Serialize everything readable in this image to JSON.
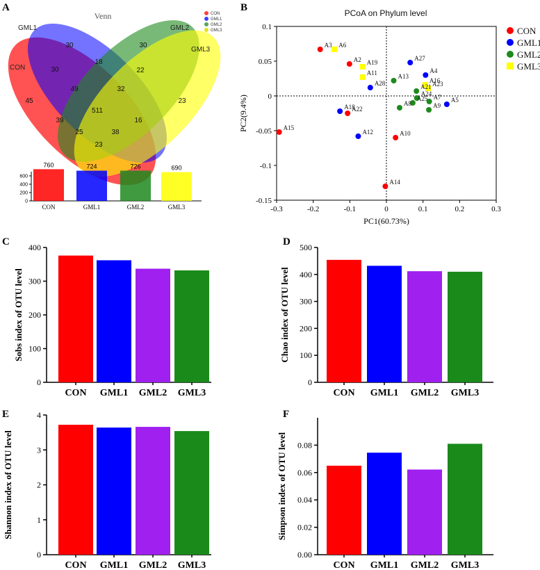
{
  "colors": {
    "CON": "#ff0000",
    "GML1": "#0000ff",
    "GML2": "#1e8a1e",
    "GML3": "#ffff00",
    "bar_purple": "#a020f0",
    "bar_green": "#1a8a1a"
  },
  "panel_labels": [
    "A",
    "B",
    "C",
    "D",
    "E",
    "F"
  ],
  "venn": {
    "title": "Venn",
    "set_labels": [
      "CON",
      "GML1",
      "GML2",
      "GML3"
    ],
    "legend": [
      "CON",
      "GML1",
      "GML2",
      "GML3"
    ],
    "regions": {
      "con_only": "45",
      "gml1_only": "30",
      "gml2_only": "30",
      "gml3_only": "23",
      "con_gml1": "30",
      "gml1_gml2": "18",
      "gml2_gml3": "22",
      "con_gml3": "23",
      "con_gml1_gml2": "49",
      "gml1_gml2_gml3": "32",
      "con_gml1_gml3": "38",
      "con_gml2_gml3": "25",
      "con_gml2": "39",
      "gml1_gml3": "16",
      "all": "511"
    },
    "totals": {
      "categories": [
        "CON",
        "GML1",
        "GML2",
        "GML3"
      ],
      "values": [
        760,
        724,
        726,
        690
      ],
      "value_labels": [
        "760",
        "724",
        "726",
        "690"
      ],
      "y_ticks": [
        "600",
        "400",
        "200",
        "0"
      ]
    }
  },
  "chart_data": [
    {
      "panel": "B",
      "type": "scatter",
      "title": "PCoA on Phylum level",
      "xlabel": "PC1(60.73%)",
      "ylabel": "PC2(9.4%)",
      "xlim": [
        -0.3,
        0.3
      ],
      "ylim": [
        -0.15,
        0.1
      ],
      "x_ticks": [
        "-0.3",
        "-0.2",
        "-0.1",
        "0",
        "0.1",
        "0.2",
        "0.3"
      ],
      "y_ticks": [
        "0.1",
        "0.05",
        "0",
        "-0.05",
        "-0.1",
        "-0.15"
      ],
      "legend": [
        "CON",
        "GML1",
        "GML2",
        "GML3"
      ],
      "points": [
        {
          "label": "A3",
          "group": "CON",
          "x": -0.181,
          "y": 0.067
        },
        {
          "label": "A6",
          "group": "GML3",
          "x": -0.142,
          "y": 0.067
        },
        {
          "label": "A2",
          "group": "CON",
          "x": -0.101,
          "y": 0.046
        },
        {
          "label": "A19",
          "group": "GML3",
          "x": -0.065,
          "y": 0.042
        },
        {
          "label": "A11",
          "group": "GML3",
          "x": -0.065,
          "y": 0.027
        },
        {
          "label": "A28",
          "group": "GML1",
          "x": -0.044,
          "y": 0.012
        },
        {
          "label": "A13",
          "group": "GML2",
          "x": 0.02,
          "y": 0.022
        },
        {
          "label": "A27",
          "group": "GML1",
          "x": 0.065,
          "y": 0.048
        },
        {
          "label": "A4",
          "group": "GML1",
          "x": 0.107,
          "y": 0.03
        },
        {
          "label": "A16",
          "group": "GML3",
          "x": 0.106,
          "y": 0.016
        },
        {
          "label": "A23",
          "group": "GML3",
          "x": 0.114,
          "y": 0.011
        },
        {
          "label": "A21",
          "group": "GML2",
          "x": 0.082,
          "y": 0.007
        },
        {
          "label": "A24",
          "group": "GML2",
          "x": 0.083,
          "y": -0.003
        },
        {
          "label": "A5",
          "group": "GML1",
          "x": 0.165,
          "y": -0.012
        },
        {
          "label": "A7",
          "group": "GML2",
          "x": 0.117,
          "y": -0.008
        },
        {
          "label": "A25",
          "group": "GML2",
          "x": 0.072,
          "y": -0.01
        },
        {
          "label": "A8",
          "group": "GML2",
          "x": 0.036,
          "y": -0.017
        },
        {
          "label": "A9",
          "group": "GML2",
          "x": 0.116,
          "y": -0.02
        },
        {
          "label": "A18",
          "group": "GML1",
          "x": -0.127,
          "y": -0.022
        },
        {
          "label": "A22",
          "group": "CON",
          "x": -0.106,
          "y": -0.025
        },
        {
          "label": "A15",
          "group": "CON",
          "x": -0.293,
          "y": -0.052
        },
        {
          "label": "A12",
          "group": "GML1",
          "x": -0.077,
          "y": -0.058
        },
        {
          "label": "A10",
          "group": "CON",
          "x": 0.025,
          "y": -0.06
        },
        {
          "label": "A14",
          "group": "CON",
          "x": -0.003,
          "y": -0.13
        }
      ]
    },
    {
      "panel": "C",
      "type": "bar",
      "ylabel": "Sobs index of OTU level",
      "categories": [
        "CON",
        "GML1",
        "GML2",
        "GML3"
      ],
      "values": [
        376,
        362,
        337,
        332
      ],
      "ylim": [
        0,
        400
      ],
      "y_ticks": [
        "400",
        "300",
        "200",
        "100",
        "0"
      ],
      "colors": [
        "#ff0000",
        "#0000ff",
        "#a020f0",
        "#1a8a1a"
      ]
    },
    {
      "panel": "D",
      "type": "bar",
      "ylabel": "Chao index of OTU level",
      "categories": [
        "CON",
        "GML1",
        "GML2",
        "GML3"
      ],
      "values": [
        454,
        432,
        412,
        410
      ],
      "ylim": [
        0,
        500
      ],
      "y_ticks": [
        "500",
        "400",
        "300",
        "200",
        "100",
        "0"
      ],
      "colors": [
        "#ff0000",
        "#0000ff",
        "#a020f0",
        "#1a8a1a"
      ]
    },
    {
      "panel": "E",
      "type": "bar",
      "ylabel": "Shannon index of OTU level",
      "categories": [
        "CON",
        "GML1",
        "GML2",
        "GML3"
      ],
      "values": [
        3.72,
        3.64,
        3.66,
        3.54
      ],
      "ylim": [
        0,
        4
      ],
      "y_ticks": [
        "4",
        "3",
        "2",
        "1",
        "0"
      ],
      "colors": [
        "#ff0000",
        "#0000ff",
        "#a020f0",
        "#1a8a1a"
      ]
    },
    {
      "panel": "F",
      "type": "bar",
      "ylabel": "Simpson index of OTU level",
      "categories": [
        "CON",
        "GML1",
        "GML2",
        "GML3"
      ],
      "values": [
        0.065,
        0.0745,
        0.0622,
        0.081
      ],
      "ylim": [
        0,
        0.1
      ],
      "y_ticks": [
        "0.00",
        "0.02",
        "0.04",
        "0.06",
        "0.08"
      ],
      "colors": [
        "#ff0000",
        "#0000ff",
        "#a020f0",
        "#1a8a1a"
      ]
    }
  ]
}
